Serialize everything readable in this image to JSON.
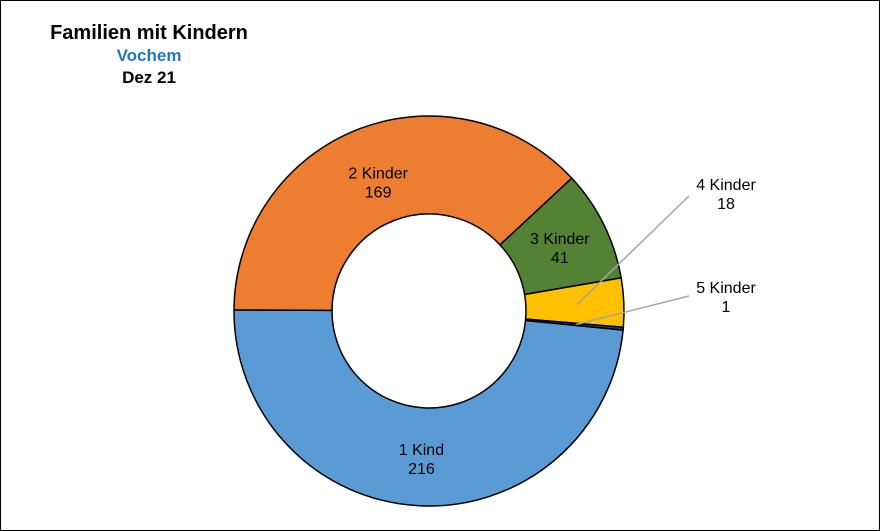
{
  "title": "Familien mit Kindern",
  "subtitle": "Vochem",
  "date": "Dez 21",
  "colors": {
    "one": "#5b9bd5",
    "two": "#ed7d31",
    "three": "#548235",
    "four": "#ffc000",
    "five": "#264478",
    "leader": "#a6a6a6"
  },
  "chart_data": {
    "type": "pie",
    "donut": true,
    "title": "Familien mit Kindern",
    "subtitle": "Vochem",
    "period": "Dez 21",
    "slices": [
      {
        "label": "1 Kind",
        "value": 216
      },
      {
        "label": "2 Kinder",
        "value": 169
      },
      {
        "label": "3 Kinder",
        "value": 41
      },
      {
        "label": "4 Kinder",
        "value": 18
      },
      {
        "label": "5 Kinder",
        "value": 1
      }
    ],
    "data_labels": [
      {
        "label": "1 Kind",
        "value": "216"
      },
      {
        "label": "2 Kinder",
        "value": "169"
      },
      {
        "label": "3 Kinder",
        "value": "41"
      },
      {
        "label": "4 Kinder",
        "value": "18"
      },
      {
        "label": "5 Kinder",
        "value": "1"
      }
    ]
  }
}
